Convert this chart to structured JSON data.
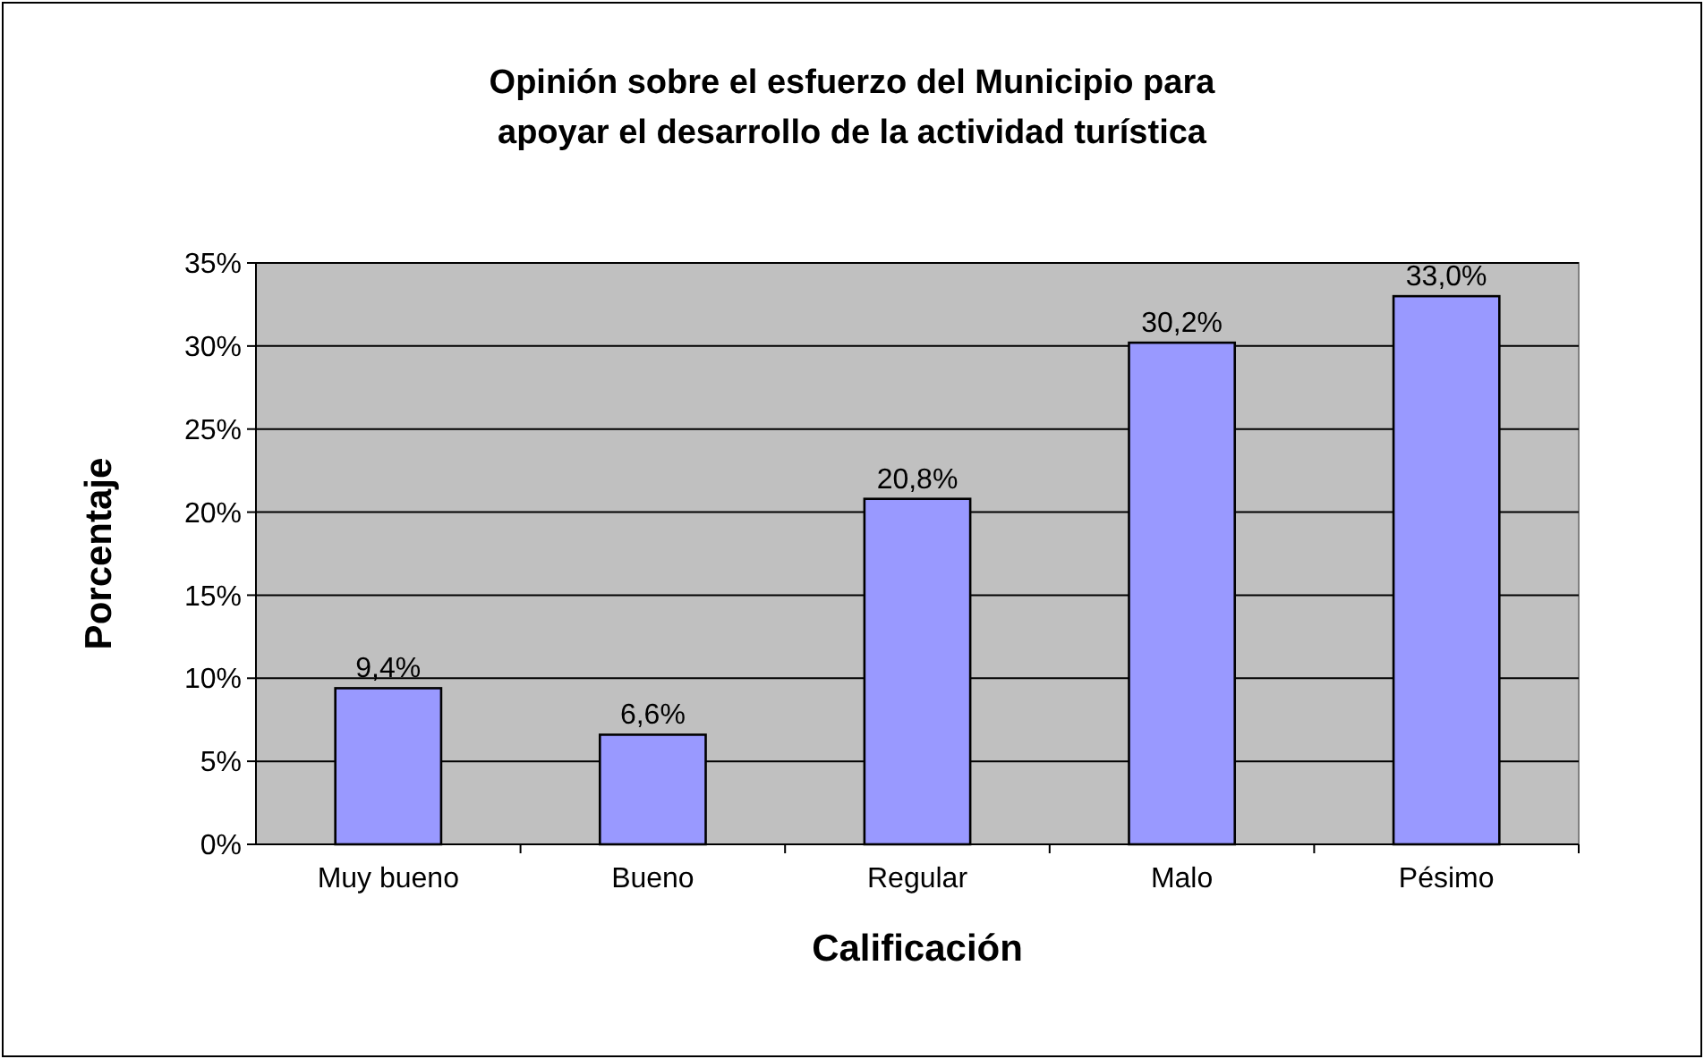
{
  "chart_data": {
    "type": "bar",
    "title": "Opinión sobre el esfuerzo del Municipio para\napoyar el desarrollo de la actividad turística",
    "xlabel": "Calificación",
    "ylabel": "Porcentaje",
    "categories": [
      "Muy bueno",
      "Bueno",
      "Regular",
      "Malo",
      "Pésimo"
    ],
    "values": [
      9.4,
      6.6,
      20.8,
      30.2,
      33.0
    ],
    "value_labels": [
      "9,4%",
      "6,6%",
      "20,8%",
      "30,2%",
      "33,0%"
    ],
    "color": "#9999ff",
    "ylim": [
      0,
      35
    ],
    "yticks": [
      {
        "value": 0,
        "label": "0%"
      },
      {
        "value": 5,
        "label": "5%"
      },
      {
        "value": 10,
        "label": "10%"
      },
      {
        "value": 15,
        "label": "15%"
      },
      {
        "value": 20,
        "label": "20%"
      },
      {
        "value": 25,
        "label": "25%"
      },
      {
        "value": 30,
        "label": "30%"
      },
      {
        "value": 35,
        "label": "35%"
      }
    ],
    "grid": "y"
  }
}
